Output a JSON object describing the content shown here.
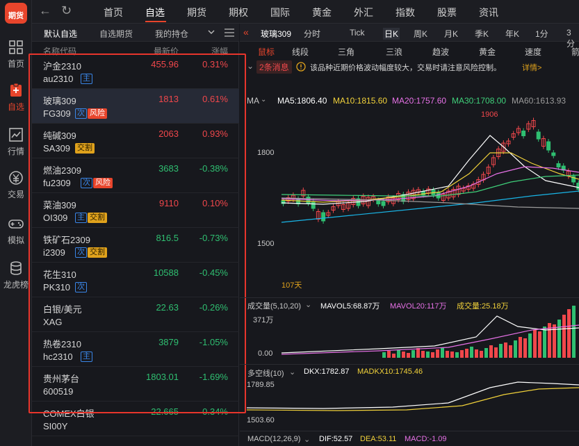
{
  "app": {
    "logo_text": "期货"
  },
  "rail": [
    {
      "label": "首页",
      "icon": "home-icon"
    },
    {
      "label": "自选",
      "icon": "watchlist-icon",
      "active": true
    },
    {
      "label": "行情",
      "icon": "market-chart-icon"
    },
    {
      "label": "交易",
      "icon": "trade-icon"
    },
    {
      "label": "模拟",
      "icon": "gamepad-icon"
    },
    {
      "label": "龙虎榜",
      "icon": "ranking-icon"
    }
  ],
  "nav": {
    "back": "←",
    "refresh": "↻",
    "items": [
      "首页",
      "自选",
      "期货",
      "期权",
      "国际",
      "黄金",
      "外汇",
      "指数",
      "股票",
      "资讯"
    ],
    "active": "自选"
  },
  "watchlist": {
    "tabs": [
      "默认自选",
      "自选期货",
      "我的持仓"
    ],
    "active_tab": "默认自选",
    "columns": {
      "name": "名称代码",
      "price": "最新价",
      "change": "涨幅"
    },
    "rows": [
      {
        "name": "沪金2310",
        "code": "au2310",
        "price": "455.96",
        "change": "0.31%",
        "dir": "up",
        "badges": [
          {
            "t": "主",
            "k": "main"
          }
        ]
      },
      {
        "name": "玻璃309",
        "code": "FG309",
        "price": "1813",
        "change": "0.61%",
        "dir": "up",
        "selected": true,
        "badges": [
          {
            "t": "次",
            "k": "ci"
          },
          {
            "t": "风险",
            "k": "risk"
          }
        ]
      },
      {
        "name": "纯碱309",
        "code": "SA309",
        "price": "2063",
        "change": "0.93%",
        "dir": "up",
        "badges": [
          {
            "t": "交割",
            "k": "deliv"
          }
        ]
      },
      {
        "name": "燃油2309",
        "code": "fu2309",
        "price": "3683",
        "change": "-0.38%",
        "dir": "dn",
        "badges": [
          {
            "t": "次",
            "k": "ci"
          },
          {
            "t": "风险",
            "k": "risk"
          }
        ]
      },
      {
        "name": "菜油309",
        "code": "OI309",
        "price": "9110",
        "change": "0.10%",
        "dir": "up",
        "badges": [
          {
            "t": "主",
            "k": "main"
          },
          {
            "t": "交割",
            "k": "deliv"
          }
        ]
      },
      {
        "name": "铁矿石2309",
        "code": "i2309",
        "price": "816.5",
        "change": "-0.73%",
        "dir": "dn",
        "badges": [
          {
            "t": "次",
            "k": "ci"
          },
          {
            "t": "交割",
            "k": "deliv"
          }
        ]
      },
      {
        "name": "花生310",
        "code": "PK310",
        "price": "10588",
        "change": "-0.45%",
        "dir": "dn",
        "badges": [
          {
            "t": "次",
            "k": "ci"
          }
        ]
      },
      {
        "name": "白银/美元",
        "code": "XAG",
        "price": "22.63",
        "change": "-0.26%",
        "dir": "dn",
        "badges": []
      },
      {
        "name": "热卷2310",
        "code": "hc2310",
        "price": "3879",
        "change": "-1.05%",
        "dir": "dn",
        "badges": [
          {
            "t": "主",
            "k": "main"
          }
        ]
      },
      {
        "name": "贵州茅台",
        "code": "600519",
        "price": "1803.01",
        "change": "-1.69%",
        "dir": "dn",
        "badges": []
      },
      {
        "name": "COMEX白银",
        "code": "SI00Y",
        "price": "22.665",
        "change": "-0.34%",
        "dir": "dn",
        "badges": []
      }
    ]
  },
  "chart": {
    "symbol": "玻璃309",
    "periods": [
      "分时",
      "Tick",
      "日K",
      "周K",
      "月K",
      "季K",
      "年K",
      "1分",
      "3分"
    ],
    "active_period": "日K",
    "tools": [
      "鼠标",
      "线段",
      "三角",
      "三浪",
      "趋波",
      "黄金",
      "速度",
      "箭"
    ],
    "notice_count": "2条消息",
    "notice_text": "该品种近期价格波动幅度较大，交易时请注意风险控制。",
    "notice_link": "详情>",
    "ma_label": "MA",
    "ma": [
      {
        "t": "MA5:1806.40",
        "c": "#ffffff"
      },
      {
        "t": "MA10:1815.60",
        "c": "#f2d23a"
      },
      {
        "t": "MA20:1757.60",
        "c": "#e872e8"
      },
      {
        "t": "MA30:1708.00",
        "c": "#3fd07a"
      },
      {
        "t": "MA60:1613.93",
        "c": "#9b9b9b"
      }
    ],
    "price_high": "1906",
    "y_labels": [
      "1800",
      "1500"
    ],
    "days": "107天",
    "vol_label": "成交量(5,10,20)",
    "mavol5": "MAVOL5:68.87万",
    "mavol20": "MAVOL20:117万",
    "vol_now": "成交量:25.18万",
    "vol_y": [
      "371万",
      "0.00"
    ],
    "dk_label": "多空线(10)",
    "dkx": "DKX:1782.87",
    "madkx": "MADKX10:1745.46",
    "dk_y": [
      "1789.85",
      "1503.60"
    ],
    "macd_label": "MACD(12,26,9)",
    "dif": "DIF:52.57",
    "dea": "DEA:53.11",
    "macd": "MACD:-1.09"
  },
  "colors": {
    "up": "#f0474b",
    "down": "#2fbf71",
    "accent": "#e8452c"
  }
}
